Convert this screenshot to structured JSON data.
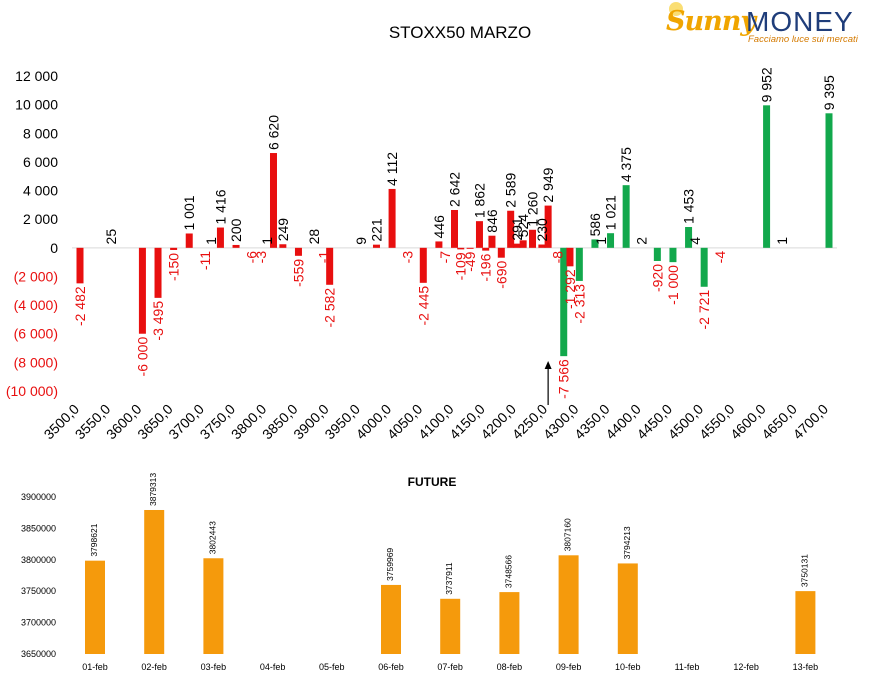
{
  "logo": {
    "brand_part1": "Sunny",
    "brand_part2": "MONEY",
    "tagline": "Facciamo luce sui mercati"
  },
  "colors": {
    "negative": "#e80f0f",
    "positive_put": "#12a84c",
    "future": "#f59a0c",
    "neg_label": "#e80f0f",
    "axis_text": "#000000"
  },
  "chart_data": [
    {
      "type": "bar",
      "title": "STOXX50 MARZO",
      "ylim": [
        -10000,
        12000
      ],
      "yticks": [
        -10000,
        -8000,
        -6000,
        -4000,
        -2000,
        0,
        2000,
        4000,
        6000,
        8000,
        10000,
        12000
      ],
      "ytick_labels": [
        "(10 000)",
        "(8 000)",
        "(6 000)",
        "(4 000)",
        "(2 000)",
        "0",
        "2 000",
        "4 000",
        "6 000",
        "8 000",
        "10 000",
        "12 000"
      ],
      "xtick_labels": [
        "3500,0",
        "3550,0",
        "3600,0",
        "3650,0",
        "3700,0",
        "3750,0",
        "3800,0",
        "3850,0",
        "3900,0",
        "3950,0",
        "4000,0",
        "4050,0",
        "4100,0",
        "4150,0",
        "4200,0",
        "4250,0",
        "4300,0",
        "4350,0",
        "4400,0",
        "4450,0",
        "4500,0",
        "4550,0",
        "4600,0",
        "4650,0",
        "4700,0"
      ],
      "arrow_at": 4250,
      "series": [
        {
          "color": "#e80f0f",
          "points": [
            {
              "x": 3500,
              "y": -2482,
              "label": "-2 482"
            },
            {
              "x": 3550,
              "y": 25,
              "label": "25"
            },
            {
              "x": 3600,
              "y": -6000,
              "label": "-6 000"
            },
            {
              "x": 3625,
              "y": -3495,
              "label": "-3 495"
            },
            {
              "x": 3650,
              "y": -150,
              "label": "-150"
            },
            {
              "x": 3675,
              "y": 1001,
              "label": "1 001"
            },
            {
              "x": 3700,
              "y": -11,
              "label": "-11"
            },
            {
              "x": 3710,
              "y": 1,
              "label": "1"
            },
            {
              "x": 3725,
              "y": 1416,
              "label": "1 416"
            },
            {
              "x": 3750,
              "y": 200,
              "label": "200"
            },
            {
              "x": 3775,
              "y": -6,
              "label": "-6"
            },
            {
              "x": 3790,
              "y": -3,
              "label": "-3"
            },
            {
              "x": 3800,
              "y": 1,
              "label": "1"
            },
            {
              "x": 3810,
              "y": 6620,
              "label": "6 620"
            },
            {
              "x": 3825,
              "y": 249,
              "label": "249"
            },
            {
              "x": 3850,
              "y": -559,
              "label": "-559"
            },
            {
              "x": 3875,
              "y": 28,
              "label": "28"
            },
            {
              "x": 3890,
              "y": -1,
              "label": "-1"
            },
            {
              "x": 3900,
              "y": -2582,
              "label": "-2 582"
            },
            {
              "x": 3950,
              "y": 9,
              "label": "9"
            },
            {
              "x": 3975,
              "y": 221,
              "label": "221"
            },
            {
              "x": 4000,
              "y": 4112,
              "label": "4 112"
            },
            {
              "x": 4025,
              "y": -3,
              "label": "-3"
            },
            {
              "x": 4050,
              "y": -2445,
              "label": "-2 445"
            },
            {
              "x": 4075,
              "y": 446,
              "label": "446"
            },
            {
              "x": 4085,
              "y": -7,
              "label": "-7"
            },
            {
              "x": 4100,
              "y": 2642,
              "label": "2 642"
            },
            {
              "x": 4110,
              "y": -109,
              "label": "-109"
            },
            {
              "x": 4125,
              "y": -49,
              "label": "-49"
            },
            {
              "x": 4140,
              "y": 1862,
              "label": "1 862"
            },
            {
              "x": 4150,
              "y": -196,
              "label": "-196"
            },
            {
              "x": 4160,
              "y": 846,
              "label": "846"
            },
            {
              "x": 4175,
              "y": -690,
              "label": "-690"
            },
            {
              "x": 4190,
              "y": 2589,
              "label": "2 589"
            },
            {
              "x": 4200,
              "y": 291,
              "label": "291"
            },
            {
              "x": 4210,
              "y": 524,
              "label": "524"
            },
            {
              "x": 4225,
              "y": 1260,
              "label": "1 260"
            },
            {
              "x": 4240,
              "y": 230,
              "label": "230"
            },
            {
              "x": 4250,
              "y": 2949,
              "label": "2 949"
            },
            {
              "x": 4265,
              "y": -8,
              "label": "-8"
            },
            {
              "x": 4275,
              "y": -7566,
              "label": "-7 566"
            },
            {
              "x": 4285,
              "y": -1292,
              "label": "-1 292"
            },
            {
              "x": 4300,
              "y": -2313,
              "label": "-2 313"
            },
            {
              "x": 4325,
              "y": 586,
              "label": "586"
            },
            {
              "x": 4335,
              "y": 1,
              "label": "1"
            },
            {
              "x": 4350,
              "y": 1021,
              "label": "1 021"
            },
            {
              "x": 4375,
              "y": 4375,
              "label": "4 375"
            },
            {
              "x": 4400,
              "y": 2,
              "label": "2"
            },
            {
              "x": 4425,
              "y": -920,
              "label": "-920"
            },
            {
              "x": 4450,
              "y": -1000,
              "label": "-1 000"
            },
            {
              "x": 4475,
              "y": 1453,
              "label": "1 453"
            },
            {
              "x": 4485,
              "y": 4,
              "label": "4"
            },
            {
              "x": 4500,
              "y": -2721,
              "label": "-2 721"
            },
            {
              "x": 4525,
              "y": -4,
              "label": "-4"
            },
            {
              "x": 4600,
              "y": 9952,
              "label": "9 952"
            },
            {
              "x": 4625,
              "y": 1,
              "label": "1"
            },
            {
              "x": 4700,
              "y": 9395,
              "label": "9 395"
            }
          ]
        }
      ]
    },
    {
      "type": "bar",
      "title": "FUTURE",
      "ylim": [
        3650000,
        3900000
      ],
      "yticks": [
        3650000,
        3700000,
        3750000,
        3800000,
        3850000,
        3900000
      ],
      "ytick_labels": [
        "3650000",
        "3700000",
        "3750000",
        "3800000",
        "3850000",
        "3900000"
      ],
      "categories": [
        "01-feb",
        "02-feb",
        "03-feb",
        "04-feb",
        "05-feb",
        "06-feb",
        "07-feb",
        "08-feb",
        "09-feb",
        "10-feb",
        "11-feb",
        "12-feb",
        "13-feb"
      ],
      "values": [
        3798621,
        3879313,
        3802443,
        null,
        null,
        3759969,
        3737911,
        3748566,
        3807160,
        3794213,
        null,
        null,
        3750131
      ],
      "value_labels": [
        "3798621",
        "3879313",
        "3802443",
        "",
        "",
        "3759969",
        "3737911",
        "3748566",
        "3807160",
        "3794213",
        "",
        "",
        "3750131"
      ],
      "color": "#f59a0c"
    }
  ]
}
